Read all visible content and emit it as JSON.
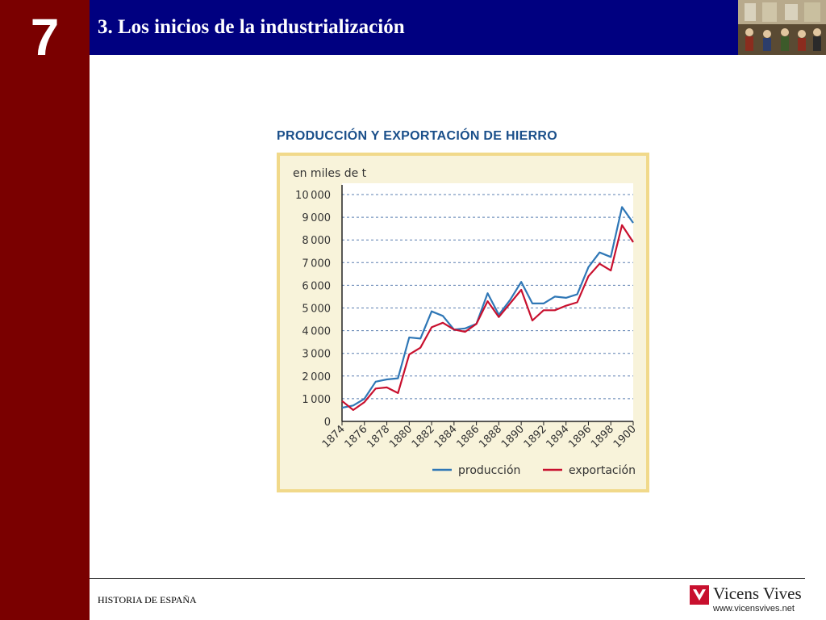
{
  "slide": {
    "chapter_number": "7",
    "title": "3. Los inicios de la industrialización",
    "footer_label": "HISTORIA DE ESPAÑA"
  },
  "brand": {
    "name": "Vicens Vives",
    "url": "www.vicensvives.net"
  },
  "colors": {
    "sidebar": "#7a0000",
    "header": "#000080",
    "chart_background": "#f8f3da",
    "chart_border": "#f1d98a",
    "produccion": "#2f77b6",
    "exportacion": "#c8102e"
  },
  "chart_data": {
    "type": "line",
    "title": "PRODUCCIÓN Y EXPORTACIÓN DE HIERRO",
    "ylabel": "en miles de t",
    "xlabel": "",
    "x": [
      1874,
      1875,
      1876,
      1877,
      1878,
      1879,
      1880,
      1881,
      1882,
      1883,
      1884,
      1885,
      1886,
      1887,
      1888,
      1889,
      1890,
      1891,
      1892,
      1893,
      1894,
      1895,
      1896,
      1897,
      1898,
      1899,
      1900
    ],
    "x_tick_labels": [
      "1874",
      "1876",
      "1878",
      "1880",
      "1882",
      "1884",
      "1886",
      "1888",
      "1890",
      "1892",
      "1894",
      "1896",
      "1898",
      "1900"
    ],
    "y_tick_labels": [
      "0",
      "1000",
      "2000",
      "3000",
      "4000",
      "5000",
      "6000",
      "7000",
      "8000",
      "9000",
      "10000"
    ],
    "ylim": [
      0,
      10000
    ],
    "xlim": [
      1874,
      1900
    ],
    "grid": "horizontal dashed",
    "legend_position": "bottom",
    "series": [
      {
        "name": "producción",
        "values": [
          600,
          700,
          1000,
          1750,
          1850,
          1900,
          3700,
          3650,
          4850,
          4650,
          4050,
          4100,
          4300,
          5650,
          4700,
          5350,
          6150,
          5200,
          5200,
          5500,
          5450,
          5600,
          6800,
          7450,
          7250,
          9450,
          8750
        ]
      },
      {
        "name": "exportación",
        "values": [
          900,
          500,
          850,
          1450,
          1500,
          1250,
          2950,
          3250,
          4150,
          4350,
          4050,
          3950,
          4300,
          5300,
          4600,
          5200,
          5800,
          4450,
          4900,
          4900,
          5100,
          5250,
          6400,
          6950,
          6650,
          8650,
          7900
        ]
      }
    ]
  }
}
